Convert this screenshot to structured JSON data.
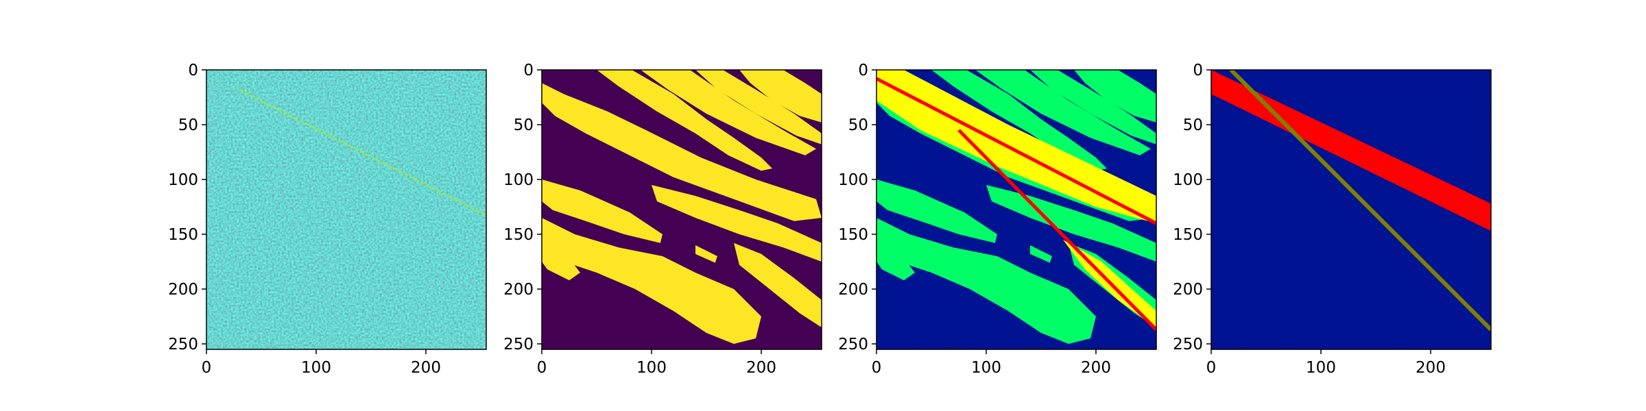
{
  "chart_data": [
    {
      "type": "heatmap",
      "title": "",
      "colormap": "viridis",
      "content": "noise image with faint diagonal streak",
      "xlim": [
        0,
        255
      ],
      "ylim": [
        255,
        0
      ],
      "x_ticks": [
        "0",
        "100",
        "200"
      ],
      "y_ticks": [
        "0",
        "50",
        "100",
        "150",
        "200",
        "250"
      ],
      "streak": {
        "from": [
          30,
          18
        ],
        "to": [
          255,
          133
        ]
      }
    },
    {
      "type": "heatmap",
      "title": "",
      "colormap": "binary-viridis",
      "content": "binary segmentation mask",
      "xlim": [
        0,
        255
      ],
      "ylim": [
        255,
        0
      ],
      "x_ticks": [
        "0",
        "100",
        "200"
      ],
      "y_ticks": [
        "0",
        "50",
        "100",
        "150",
        "200",
        "250"
      ],
      "colors": {
        "background": "#440154",
        "foreground": "#fde725"
      }
    },
    {
      "type": "heatmap",
      "title": "",
      "content": "mask overlay with detected streak region",
      "xlim": [
        0,
        255
      ],
      "ylim": [
        255,
        0
      ],
      "x_ticks": [
        "0",
        "100",
        "200"
      ],
      "y_ticks": [
        "0",
        "50",
        "100",
        "150",
        "200",
        "250"
      ],
      "colors": {
        "background": "#00006e",
        "mask": "#00ff66",
        "detection": "#ff0000",
        "overlap": "#ffff00"
      },
      "lines": [
        {
          "from": [
            0,
            8
          ],
          "to": [
            255,
            140
          ],
          "color": "#ff0000"
        },
        {
          "from": [
            75,
            55
          ],
          "to": [
            255,
            237
          ],
          "color": "#ff0000"
        }
      ]
    },
    {
      "type": "heatmap",
      "title": "",
      "content": "detected streak band and fitted line",
      "xlim": [
        0,
        255
      ],
      "ylim": [
        255,
        0
      ],
      "x_ticks": [
        "0",
        "100",
        "200"
      ],
      "y_ticks": [
        "0",
        "50",
        "100",
        "150",
        "200",
        "250"
      ],
      "colors": {
        "background": "#00006e",
        "band": "#ff0000",
        "fit_line": "#808000"
      },
      "band": {
        "top": [
          [
            0,
            0
          ],
          [
            255,
            122
          ]
        ],
        "bottom": [
          [
            0,
            22
          ],
          [
            255,
            147
          ]
        ]
      },
      "fit_line": {
        "from": [
          18,
          0
        ],
        "to": [
          255,
          237
        ]
      }
    }
  ]
}
